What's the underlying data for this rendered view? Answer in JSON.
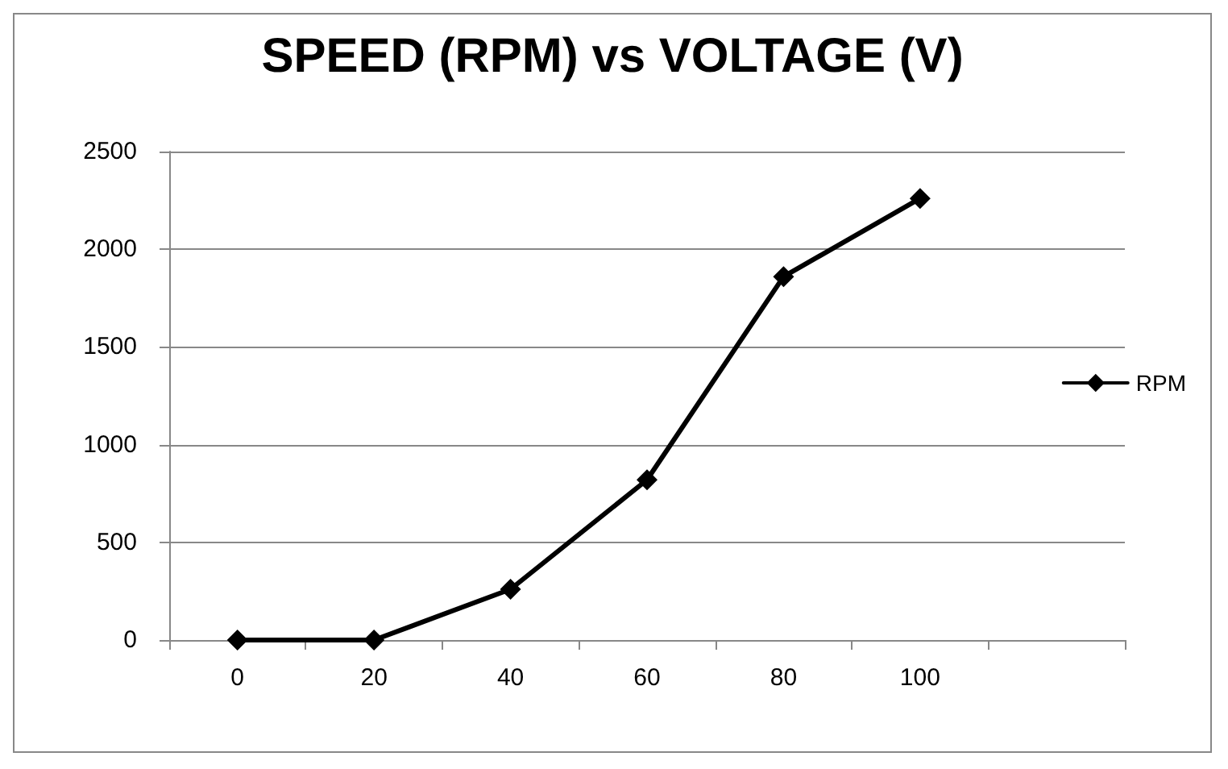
{
  "chart_data": {
    "type": "line",
    "title": "SPEED (RPM) vs VOLTAGE (V)",
    "categories": [
      "0",
      "20",
      "40",
      "60",
      "80",
      "100",
      null
    ],
    "series": [
      {
        "name": "RPM",
        "color": "#000000",
        "values": [
          0,
          0,
          260,
          820,
          1860,
          2260,
          null
        ]
      }
    ],
    "ylim": [
      0,
      2500
    ],
    "yticks": [
      0,
      500,
      1000,
      1500,
      2000,
      2500
    ],
    "grid": "y",
    "legend": "right",
    "marker": "diamond",
    "line_style": "solid"
  }
}
